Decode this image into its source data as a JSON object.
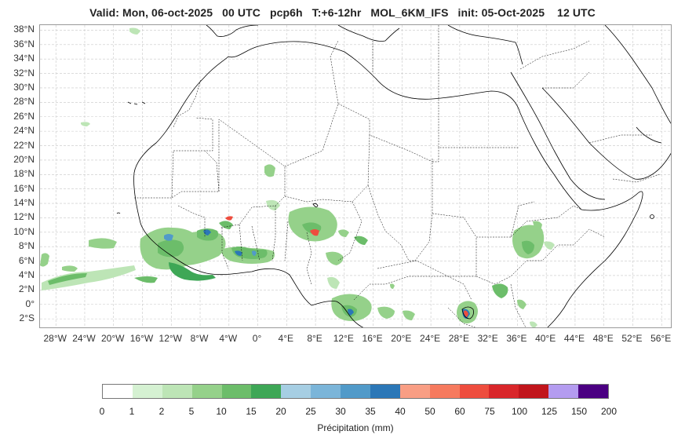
{
  "header": {
    "title": "Valid: Mon, 06-oct-2025   00 UTC   pcp6h   T:+6-12hr   MOL_6KM_IFS   init: 05-Oct-2025    12 UTC"
  },
  "map": {
    "lat_labels": [
      "38°N",
      "36°N",
      "34°N",
      "32°N",
      "30°N",
      "28°N",
      "26°N",
      "24°N",
      "22°N",
      "20°N",
      "18°N",
      "16°N",
      "14°N",
      "12°N",
      "10°N",
      "8°N",
      "6°N",
      "4°N",
      "2°N",
      "0°",
      "2°S"
    ],
    "lon_labels": [
      "28°W",
      "24°W",
      "20°W",
      "16°W",
      "12°W",
      "8°W",
      "4°W",
      "0°",
      "4°E",
      "8°E",
      "12°E",
      "16°E",
      "20°E",
      "24°E",
      "28°E",
      "32°E",
      "36°E",
      "40°E",
      "44°E",
      "48°E",
      "52°E",
      "56°E"
    ],
    "extent": {
      "lon_min": -30.2,
      "lon_max": 57.5,
      "lat_min": -3.4,
      "lat_max": 38.7
    },
    "coastline_color": "#000000",
    "border_color": "#000000",
    "grid": "dashed light gray"
  },
  "colorbar": {
    "label": "Précipitation (mm)",
    "ticks": [
      "0",
      "1",
      "2",
      "5",
      "10",
      "15",
      "20",
      "25",
      "30",
      "35",
      "40",
      "50",
      "60",
      "75",
      "100",
      "125",
      "150",
      "200"
    ],
    "colors": [
      "#ffffff",
      "#d5f1d2",
      "#bde5b6",
      "#95d18a",
      "#6cbd6a",
      "#3ea756",
      "#a6cee3",
      "#7bb5d9",
      "#519ac9",
      "#2b77b7",
      "#f99e84",
      "#f67a5e",
      "#ee4d3e",
      "#d9262a",
      "#c1151c",
      "#b49cf0",
      "#4b0082"
    ]
  }
}
